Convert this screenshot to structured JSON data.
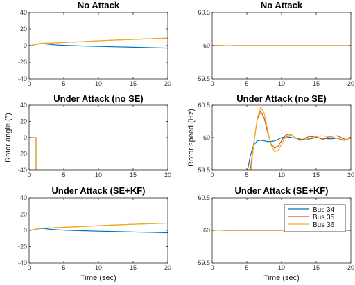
{
  "figure": {
    "xlabel": "Time (sec)",
    "ylabel_left": "Rotor angle (°)",
    "ylabel_right": "Rotor speed (Hz)"
  },
  "colors": {
    "Bus 34": "#0072bd",
    "Bus 35": "#d95319",
    "Bus 36": "#edb120"
  },
  "legend": {
    "entries": [
      "Bus 34",
      "Bus 35",
      "Bus 36"
    ],
    "placement": "top-right of bottom-right panel"
  },
  "chart_data": [
    {
      "id": "p1",
      "type": "line",
      "title": "No Attack",
      "xlim": [
        0,
        20
      ],
      "ylim": [
        -40,
        40
      ],
      "xticks": [
        0,
        5,
        10,
        15,
        20
      ],
      "yticks": [
        -40,
        -20,
        0,
        20,
        40
      ],
      "series": [
        {
          "name": "Bus 34",
          "x": [
            0,
            0.5,
            1,
            1.5,
            2,
            2.5,
            3,
            4,
            5,
            7.5,
            10,
            12.5,
            15,
            17.5,
            20
          ],
          "y": [
            0,
            0.5,
            1.5,
            2.2,
            2.4,
            2.0,
            1.4,
            0.8,
            0.3,
            -0.4,
            -1.0,
            -1.5,
            -2.0,
            -2.5,
            -3.0
          ]
        },
        {
          "name": "Bus 35",
          "x": [
            0,
            0.5,
            1,
            1.5,
            2,
            2.5,
            3,
            4,
            5,
            7.5,
            10,
            12.5,
            15,
            17.5,
            20
          ],
          "y": [
            0,
            0.6,
            1.6,
            2.5,
            2.9,
            3.0,
            3.1,
            3.5,
            3.9,
            4.8,
            5.8,
            6.7,
            7.5,
            8.3,
            9.0
          ]
        },
        {
          "name": "Bus 36",
          "x": [
            0,
            0.5,
            1,
            1.5,
            2,
            2.5,
            3,
            4,
            5,
            7.5,
            10,
            12.5,
            15,
            17.5,
            20
          ],
          "y": [
            0,
            0.6,
            1.6,
            2.5,
            2.9,
            3.0,
            3.1,
            3.5,
            3.9,
            4.8,
            5.8,
            6.7,
            7.5,
            8.3,
            9.0
          ]
        }
      ]
    },
    {
      "id": "p2",
      "type": "line",
      "title": "No Attack",
      "xlim": [
        0,
        20
      ],
      "ylim": [
        59.5,
        60.5
      ],
      "xticks": [
        0,
        5,
        10,
        15,
        20
      ],
      "yticks": [
        59.5,
        60,
        60.5
      ],
      "series": [
        {
          "name": "Bus 34",
          "x": [
            0,
            1,
            2,
            3,
            5,
            10,
            15,
            20
          ],
          "y": [
            60,
            60.003,
            59.998,
            60,
            60,
            60,
            60,
            60
          ]
        },
        {
          "name": "Bus 35",
          "x": [
            0,
            1,
            2,
            3,
            5,
            10,
            15,
            20
          ],
          "y": [
            60,
            60.003,
            59.998,
            60,
            60,
            60,
            60,
            60
          ]
        },
        {
          "name": "Bus 36",
          "x": [
            0,
            1,
            2,
            3,
            5,
            10,
            15,
            20
          ],
          "y": [
            60,
            60.003,
            59.998,
            60,
            60,
            60,
            60,
            60
          ]
        }
      ]
    },
    {
      "id": "p3",
      "type": "line",
      "title": "Under Attack (no SE)",
      "xlim": [
        0,
        20
      ],
      "ylim": [
        -40,
        40
      ],
      "xticks": [
        0,
        5,
        10,
        15,
        20
      ],
      "yticks": [
        -40,
        -20,
        0,
        20,
        40
      ],
      "series": [
        {
          "name": "Bus 34",
          "x": [
            0,
            1,
            1
          ],
          "y": [
            0,
            0,
            -40
          ]
        },
        {
          "name": "Bus 35",
          "x": [
            0,
            1,
            1
          ],
          "y": [
            0,
            0,
            -40
          ]
        },
        {
          "name": "Bus 36",
          "x": [
            0,
            1,
            1
          ],
          "y": [
            0,
            0,
            -40
          ]
        }
      ]
    },
    {
      "id": "p4",
      "type": "line",
      "title": "Under Attack (no SE)",
      "xlim": [
        0,
        20
      ],
      "ylim": [
        59.5,
        60.5
      ],
      "xticks": [
        0,
        5,
        10,
        15,
        20
      ],
      "yticks": [
        59.5,
        60,
        60.5
      ],
      "series": [
        {
          "name": "Bus 34",
          "x": [
            5.1,
            5.5,
            6,
            6.5,
            7,
            7.5,
            8,
            8.5,
            9,
            9.5,
            10,
            10.5,
            11,
            11.5,
            12,
            12.5,
            13,
            14,
            15,
            16,
            17,
            18,
            19,
            19.5,
            20
          ],
          "y": [
            59.5,
            59.72,
            59.89,
            59.95,
            59.96,
            59.95,
            59.94,
            59.94,
            59.95,
            59.97,
            60.0,
            60.01,
            60.01,
            60.0,
            59.99,
            59.98,
            59.97,
            59.98,
            60.0,
            59.99,
            59.98,
            59.99,
            59.96,
            59.97,
            60.0
          ]
        },
        {
          "name": "Bus 35",
          "x": [
            5.5,
            6,
            6.5,
            7,
            7.5,
            8,
            8.5,
            9,
            9.5,
            10,
            10.5,
            11,
            11.5,
            12,
            12.5,
            13,
            14,
            15,
            16,
            17,
            18,
            19,
            19.5,
            20
          ],
          "y": [
            59.5,
            59.92,
            60.28,
            60.41,
            60.3,
            60.08,
            59.9,
            59.84,
            59.87,
            59.95,
            60.03,
            60.06,
            60.04,
            60.0,
            59.97,
            59.97,
            60.02,
            60.01,
            59.97,
            60.02,
            60.03,
            59.98,
            59.97,
            60.01
          ]
        },
        {
          "name": "Bus 36",
          "x": [
            5.6,
            6,
            6.5,
            7,
            7.5,
            8,
            8.5,
            9,
            9.5,
            10,
            10.5,
            11,
            11.5,
            12,
            12.5,
            13,
            14,
            15,
            16,
            17,
            18,
            19,
            19.5,
            20
          ],
          "y": [
            59.5,
            59.9,
            60.3,
            60.47,
            60.38,
            60.12,
            59.88,
            59.78,
            59.8,
            59.9,
            60.0,
            60.04,
            60.04,
            60.0,
            59.96,
            59.96,
            59.99,
            60.02,
            60.03,
            60.01,
            59.99,
            59.97,
            59.97,
            59.99
          ]
        }
      ]
    },
    {
      "id": "p5",
      "type": "line",
      "title": "Under Attack (SE+KF)",
      "xlim": [
        0,
        20
      ],
      "ylim": [
        -40,
        40
      ],
      "xticks": [
        0,
        5,
        10,
        15,
        20
      ],
      "yticks": [
        -40,
        -20,
        0,
        20,
        40
      ],
      "series": [
        {
          "name": "Bus 34",
          "x": [
            0,
            0.5,
            1,
            1.5,
            2,
            2.5,
            3,
            4,
            5,
            7.5,
            10,
            12.5,
            15,
            17.5,
            20
          ],
          "y": [
            0,
            0.5,
            1.5,
            2.2,
            2.4,
            2.0,
            1.4,
            0.8,
            0.3,
            -0.4,
            -1.0,
            -1.5,
            -2.0,
            -2.5,
            -3.0
          ]
        },
        {
          "name": "Bus 35",
          "x": [
            0,
            0.5,
            1,
            1.5,
            2,
            2.5,
            3,
            4,
            5,
            7.5,
            10,
            12.5,
            15,
            17.5,
            20
          ],
          "y": [
            0,
            0.6,
            1.6,
            2.5,
            2.9,
            3.0,
            3.1,
            3.5,
            3.9,
            4.8,
            5.8,
            6.7,
            7.5,
            8.3,
            9.0
          ]
        },
        {
          "name": "Bus 36",
          "x": [
            0,
            0.5,
            1,
            1.5,
            2,
            2.5,
            3,
            4,
            5,
            7.5,
            10,
            12.5,
            15,
            17.5,
            20
          ],
          "y": [
            0,
            0.6,
            1.6,
            2.5,
            2.9,
            3.0,
            3.1,
            3.5,
            3.9,
            4.8,
            5.8,
            6.7,
            7.5,
            8.3,
            9.0
          ]
        }
      ]
    },
    {
      "id": "p6",
      "type": "line",
      "title": "Under Attack (SE+KF)",
      "xlim": [
        0,
        20
      ],
      "ylim": [
        59.5,
        60.5
      ],
      "xticks": [
        0,
        5,
        10,
        15,
        20
      ],
      "yticks": [
        59.5,
        60,
        60.5
      ],
      "series": [
        {
          "name": "Bus 34",
          "x": [
            0,
            1,
            2,
            3,
            5,
            10,
            15,
            20
          ],
          "y": [
            60,
            60.003,
            59.998,
            60,
            60,
            60,
            60,
            60
          ]
        },
        {
          "name": "Bus 35",
          "x": [
            0,
            1,
            2,
            3,
            5,
            10,
            15,
            20
          ],
          "y": [
            60,
            60.003,
            59.998,
            60,
            60,
            60,
            60,
            60
          ]
        },
        {
          "name": "Bus 36",
          "x": [
            0,
            1,
            2,
            3,
            5,
            10,
            15,
            20
          ],
          "y": [
            60,
            60.003,
            59.998,
            60,
            60,
            60,
            60,
            60
          ]
        }
      ]
    }
  ]
}
